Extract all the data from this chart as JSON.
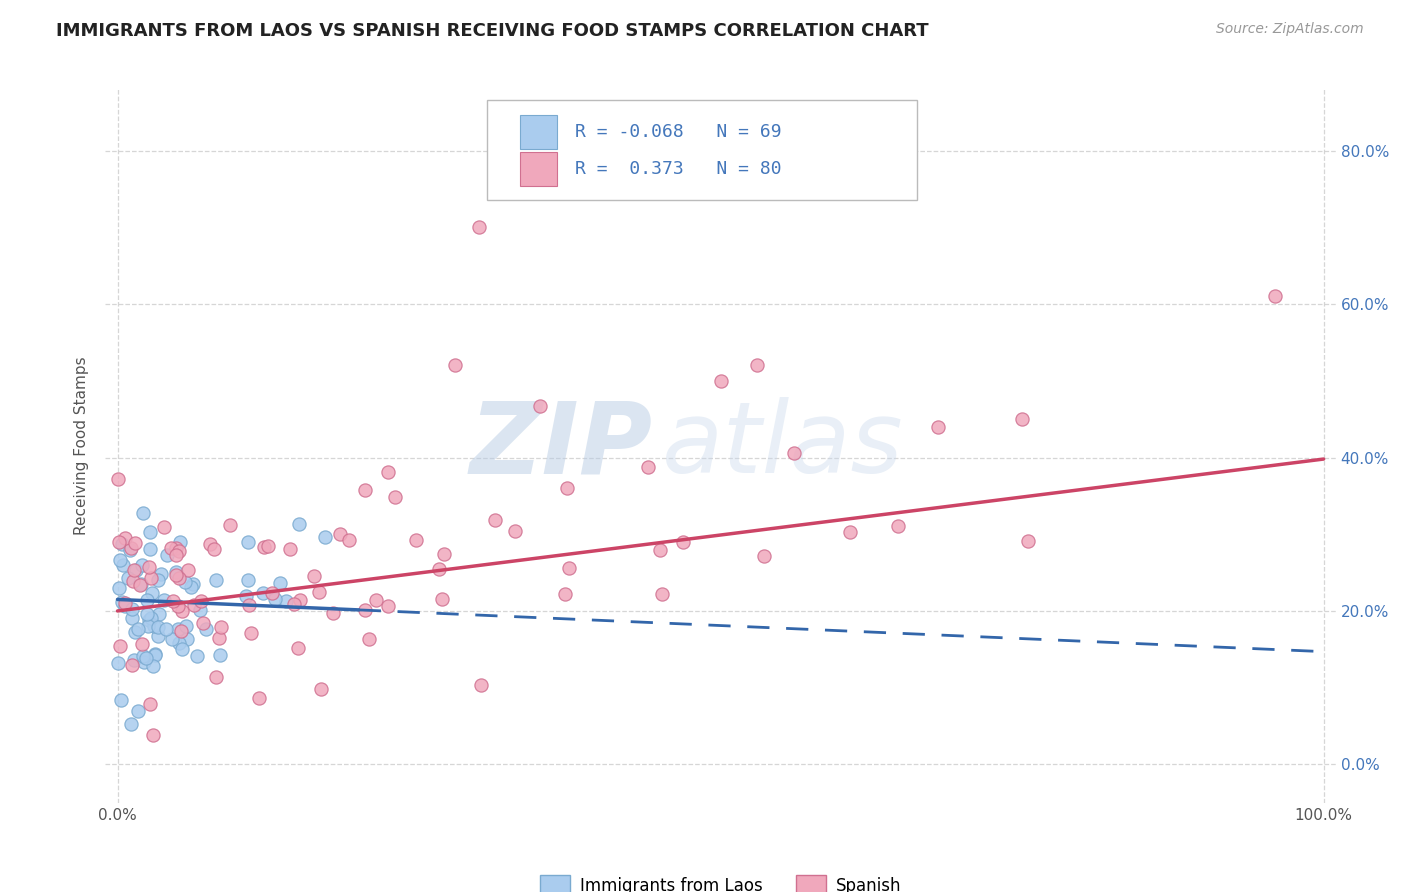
{
  "title": "IMMIGRANTS FROM LAOS VS SPANISH RECEIVING FOOD STAMPS CORRELATION CHART",
  "source": "Source: ZipAtlas.com",
  "ylabel": "Receiving Food Stamps",
  "xlim": [
    -1,
    101
  ],
  "ylim": [
    -5,
    88
  ],
  "ytick_values": [
    0,
    20,
    40,
    60,
    80
  ],
  "xtick_values": [
    0,
    100
  ],
  "background_color": "#ffffff",
  "grid_color": "#cccccc",
  "laos_color": "#aaccee",
  "laos_edge": "#7aaad0",
  "spanish_color": "#f0a8bc",
  "spanish_edge": "#d07090",
  "laos_line_color": "#3366aa",
  "laos_line_solid_color": "#3366aa",
  "spanish_line_color": "#cc4466",
  "laos_R": "-0.068",
  "laos_N": "69",
  "spanish_R": "0.373",
  "spanish_N": "80",
  "legend_label_laos": "Immigrants from Laos",
  "legend_label_spanish": "Spanish",
  "title_color": "#222222",
  "source_color": "#999999",
  "axis_label_color": "#555555",
  "right_tick_color": "#4477bb",
  "laos_line_solid_end_x": 20,
  "laos_line_intercept": 21.5,
  "laos_line_slope": -0.068,
  "spanish_line_intercept": 20.0,
  "spanish_line_slope": 0.198
}
